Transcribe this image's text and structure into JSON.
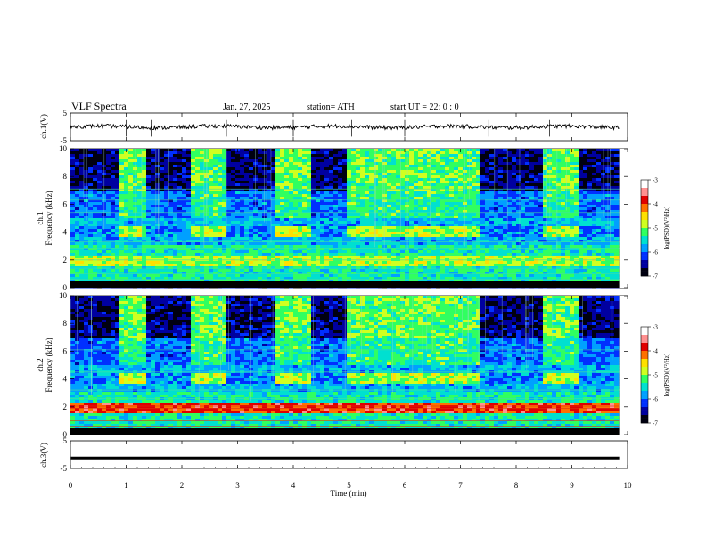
{
  "header": {
    "title": "VLF  Spectra",
    "date": "Jan. 27, 2025",
    "station": "station= ATH",
    "start": "start  UT  =    22: 0   : 0"
  },
  "axes": {
    "ch1_wave_label": "ch.1(V)",
    "ch1_wave_ticks": [
      "5",
      "-5"
    ],
    "ch1_spec_label_top": "ch.1",
    "ch2_spec_label_top": "ch.2",
    "freq_label": "Frequency  (kHz)",
    "freq_ticks": [
      "0",
      "2",
      "4",
      "6",
      "8",
      "10"
    ],
    "ch3_wave_label": "ch.3(V)",
    "ch3_wave_ticks": [
      "5",
      "-5"
    ],
    "time_label": "Time  (min)",
    "time_ticks": [
      "0",
      "1",
      "2",
      "3",
      "4",
      "5",
      "6",
      "7",
      "8",
      "9",
      "10"
    ],
    "cbar_label": "log(PSD)(V²/Hz)",
    "cbar_ticks": [
      "-3",
      "-4",
      "-5",
      "-6",
      "-7"
    ]
  },
  "colors": {
    "cmap": [
      "#000010",
      "#0000a0",
      "#0030ff",
      "#00a0ff",
      "#00e0d0",
      "#30ff60",
      "#d0ff20",
      "#ffe000",
      "#ff7000",
      "#e00000",
      "#ff9090",
      "#ffffff"
    ]
  },
  "chart_data": [
    {
      "type": "line",
      "name": "ch.1",
      "ylabel": "ch.1(V)",
      "ylim": [
        -5,
        5
      ],
      "xlim": [
        0,
        10
      ],
      "mean_level_V": 0,
      "note_level": "noisy trace centered near 0 V with spikes"
    },
    {
      "type": "heatmap",
      "name": "ch.1",
      "ylabel": "Frequency (kHz)",
      "xlabel": "Time (min)",
      "xlim": [
        0,
        10
      ],
      "ylim": [
        0,
        10
      ],
      "colorbar": {
        "label": "log(PSD)(V²/Hz)",
        "range": [
          -7,
          -3
        ]
      },
      "high_activity_intervals_min": [
        [
          0.85,
          1.35
        ],
        [
          2.2,
          2.8
        ],
        [
          3.65,
          4.3
        ],
        [
          4.95,
          7.35
        ],
        [
          8.45,
          9.1
        ]
      ],
      "persistent_bands_kHz": [
        2.0,
        4.0
      ]
    },
    {
      "type": "heatmap",
      "name": "ch.2",
      "ylabel": "Frequency (kHz)",
      "xlabel": "Time (min)",
      "xlim": [
        0,
        10
      ],
      "ylim": [
        0,
        10
      ],
      "colorbar": {
        "label": "log(PSD)(V²/Hz)",
        "range": [
          -7,
          -3
        ]
      },
      "high_activity_intervals_min": [
        [
          0.85,
          1.35
        ],
        [
          2.2,
          2.8
        ],
        [
          3.65,
          4.3
        ],
        [
          4.95,
          7.35
        ],
        [
          8.45,
          9.1
        ]
      ],
      "persistent_bands_kHz": [
        2.0,
        4.0
      ]
    },
    {
      "type": "line",
      "name": "ch.3",
      "ylabel": "ch.3(V)",
      "ylim": [
        -5,
        5
      ],
      "xlim": [
        0,
        10
      ],
      "mean_level_V": -1.2,
      "note_level": "thick flat trace"
    }
  ]
}
